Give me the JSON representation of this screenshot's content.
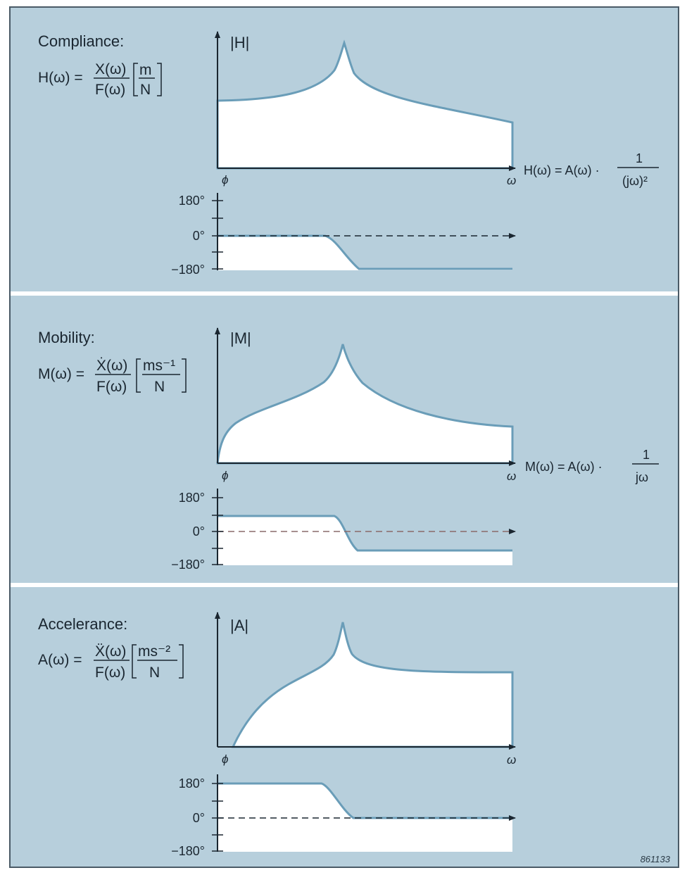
{
  "panels": [
    {
      "title": "Compliance:",
      "formula_lhs": "H(ω) =",
      "formula_num": "X(ω)",
      "formula_den": "F(ω)",
      "unit_num": "m",
      "unit_den": "N",
      "mag_label": "|H|",
      "phi_label": "ϕ",
      "omega_label": "ω",
      "phase_ticks": [
        "180°",
        "0°",
        "−180°"
      ],
      "relation_lhs": "H(ω) = A(ω) ·",
      "relation_num": "1",
      "relation_den": "(jω)²"
    },
    {
      "title": "Mobility:",
      "formula_lhs": "M(ω) =",
      "formula_num": "Ẋ(ω)",
      "formula_den": "F(ω)",
      "unit_num": "ms⁻¹",
      "unit_den": "N",
      "mag_label": "|M|",
      "phi_label": "ϕ",
      "omega_label": "ω",
      "phase_ticks": [
        "180°",
        "0°",
        "−180°"
      ],
      "relation_lhs": "M(ω) = A(ω) ·",
      "relation_num": "1",
      "relation_den": "jω"
    },
    {
      "title": "Accelerance:",
      "formula_lhs": "A(ω) =",
      "formula_num": "Ẍ(ω)",
      "formula_den": "F(ω)",
      "unit_num": "ms⁻²",
      "unit_den": "N",
      "mag_label": "|A|",
      "phi_label": "ϕ",
      "omega_label": "ω",
      "phase_ticks": [
        "180°",
        "0°",
        "−180°"
      ],
      "relation_lhs": "",
      "relation_num": "",
      "relation_den": ""
    }
  ],
  "figure_number": "861133",
  "colors": {
    "background": "#b7cfdc",
    "curve": "#6a9db8",
    "fill": "#ffffff",
    "divider": "#ffffff",
    "ink": "#1a2630"
  }
}
